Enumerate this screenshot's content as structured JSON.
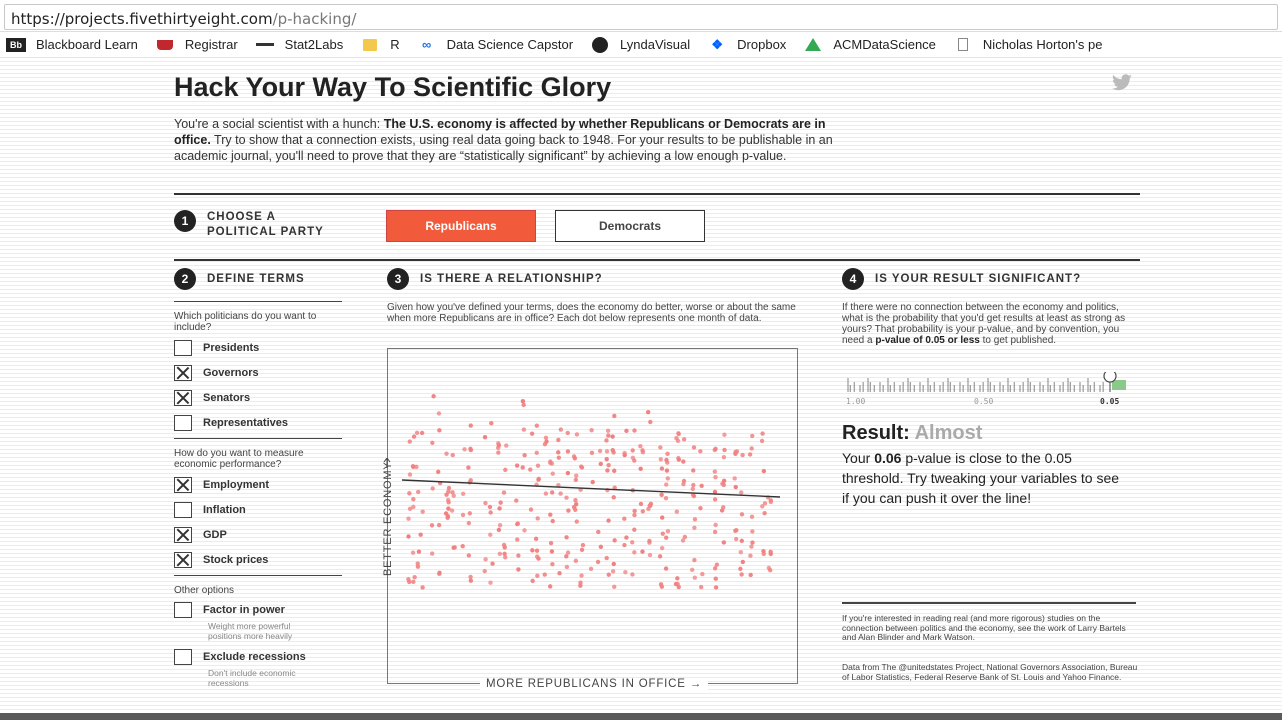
{
  "browser": {
    "url_host": "https://projects.fivethirtyeight.com",
    "url_path": "/p-hacking/",
    "bookmarks": [
      {
        "icon": "blackboard-icon",
        "icon_text": "Bb",
        "label": "Blackboard Learn",
        "color": "#222222"
      },
      {
        "icon": "registrar-icon",
        "icon_text": "",
        "label": "Registrar",
        "color": "#c0282d"
      },
      {
        "icon": "stat2labs-icon",
        "icon_text": "",
        "label": "Stat2Labs",
        "color": "#333333"
      },
      {
        "icon": "folder-icon",
        "icon_text": "",
        "label": "R",
        "color": "#f2c94c"
      },
      {
        "icon": "link-icon",
        "icon_text": "",
        "label": "Data Science Capstor",
        "color": "#1a73e8"
      },
      {
        "icon": "lynda-icon",
        "icon_text": "",
        "label": "LyndaVisual",
        "color": "#222222"
      },
      {
        "icon": "dropbox-icon",
        "icon_text": "",
        "label": "Dropbox",
        "color": "#0061fe"
      },
      {
        "icon": "drive-icon",
        "icon_text": "",
        "label": "ACMDataScience",
        "color": "#34a853"
      },
      {
        "icon": "page-icon",
        "icon_text": "",
        "label": "Nicholas Horton's pe",
        "color": "#888888"
      }
    ]
  },
  "page": {
    "title": "Hack Your Way To Scientific Glory",
    "intro_1": "You're a social scientist with a hunch: ",
    "intro_bold": "The U.S. economy is affected by whether Republicans or Democrats are in office.",
    "intro_2": " Try to show that a connection exists, using real data going back to 1948. For your results to be publishable in an academic journal, you'll need to prove that they are “statistically significant” by achieving a low enough p-value."
  },
  "step1": {
    "num": "1",
    "label_line1": "CHOOSE A",
    "label_line2": "POLITICAL PARTY",
    "btn_rep": "Republicans",
    "btn_dem": "Democrats"
  },
  "step2": {
    "num": "2",
    "label": "DEFINE TERMS",
    "q1": "Which politicians do you want to include?",
    "politicians": [
      {
        "label": "Presidents",
        "checked": false
      },
      {
        "label": "Governors",
        "checked": true
      },
      {
        "label": "Senators",
        "checked": true
      },
      {
        "label": "Representatives",
        "checked": false
      }
    ],
    "q2": "How do you want to measure economic performance?",
    "measures": [
      {
        "label": "Employment",
        "checked": true
      },
      {
        "label": "Inflation",
        "checked": false
      },
      {
        "label": "GDP",
        "checked": true
      },
      {
        "label": "Stock prices",
        "checked": true
      }
    ],
    "q3": "Other options",
    "options": [
      {
        "label": "Factor in power",
        "checked": false,
        "sub": "Weight more powerful positions more heavily"
      },
      {
        "label": "Exclude recessions",
        "checked": false,
        "sub": "Don't include economic recessions"
      }
    ]
  },
  "step3": {
    "num": "3",
    "label": "IS THERE A RELATIONSHIP?",
    "desc": "Given how you've defined your terms, does the economy do better, worse or about the same when more Republicans are in office? Each dot below represents one month of data.",
    "y_label": "BETTER ECONOMY",
    "x_label": "MORE REPUBLICANS IN OFFICE →"
  },
  "step4": {
    "num": "4",
    "label": "IS YOUR RESULT SIGNIFICANT?",
    "desc_1": "If there were no connection between the economy and politics, what is the probability that you'd get results at least as strong as yours? That probability is your p-value, and by convention, you need a ",
    "desc_bold": "p-value of 0.05 or less",
    "desc_2": " to get published.",
    "scale_left": "1.00",
    "scale_mid": "0.50",
    "scale_right": "0.05",
    "result_label": "Result: ",
    "result_value": "Almost",
    "result_text_1": "Your ",
    "result_p": "0.06",
    "result_text_2": " p-value is close to the 0.05 threshold. Try tweaking your variables to see if you can push it over the line!",
    "footnote_1": "If you're interested in reading real (and more rigorous) studies on the connection between politics and the economy, see the work of Larry Bartels and Alan Blinder and Mark Watson.",
    "footnote_2": "Data from The @unitedstates Project, National Governors Association, Bureau of Labor Statistics, Federal Reserve Bank of St. Louis and Yahoo Finance."
  },
  "colors": {
    "accent": "#f15b3b",
    "dot": "#f08080",
    "scale_green": "#8bc98b"
  }
}
